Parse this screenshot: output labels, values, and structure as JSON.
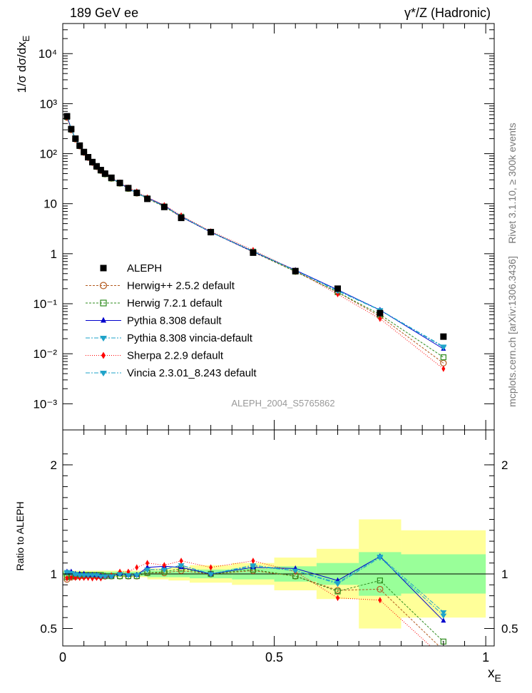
{
  "header": {
    "left_title": "189 GeV ee",
    "right_title": "γ*/Z (Hadronic)"
  },
  "side_labels": {
    "rivet": "Rivet 3.1.10, ≥ 300k events",
    "mcplots": "mcplots.cern.ch [arXiv:1306.3436]"
  },
  "watermark": "ALEPH_2004_S5765862",
  "chart_data": [
    {
      "type": "line",
      "title": "189 GeV ee — γ*/Z (Hadronic)",
      "ylabel": "1/σ dσ/dx_E",
      "yscale": "log",
      "xlim": [
        0,
        1.02
      ],
      "ylim": [
        0.0003,
        40000
      ],
      "y_ticks": [
        {
          "v": 0.001,
          "label": "10⁻³"
        },
        {
          "v": 0.01,
          "label": "10⁻²"
        },
        {
          "v": 0.1,
          "label": "10⁻¹"
        },
        {
          "v": 1,
          "label": "1"
        },
        {
          "v": 10,
          "label": "10"
        },
        {
          "v": 100,
          "label": "10²"
        },
        {
          "v": 1000,
          "label": "10³"
        },
        {
          "v": 10000,
          "label": "10⁴"
        }
      ],
      "legend_position": "middle-left",
      "x": [
        0.01,
        0.02,
        0.03,
        0.04,
        0.05,
        0.06,
        0.07,
        0.08,
        0.09,
        0.1,
        0.115,
        0.135,
        0.155,
        0.175,
        0.2,
        0.24,
        0.28,
        0.35,
        0.45,
        0.55,
        0.65,
        0.75,
        0.9
      ],
      "data": {
        "name": "ALEPH",
        "values": [
          560,
          310,
          200,
          145,
          108,
          85,
          68,
          56,
          47,
          40,
          33,
          26,
          20.5,
          16.5,
          12.5,
          8.6,
          5.2,
          2.7,
          1.05,
          0.45,
          0.2,
          0.065,
          0.022
        ]
      },
      "series": [
        {
          "name": "Herwig++ 2.5.2 default",
          "color": "#b35a1f",
          "marker": "circle-open",
          "dash": "3,2",
          "values": [
            530,
            300,
            195,
            142,
            106,
            84,
            67,
            55,
            46,
            39,
            32,
            25.5,
            20,
            16.2,
            12.6,
            8.7,
            5.4,
            2.7,
            1.08,
            0.44,
            0.17,
            0.056,
            0.0065
          ]
        },
        {
          "name": "Herwig 7.2.1 default",
          "color": "#2e8b1e",
          "marker": "square-open",
          "dash": "3,2",
          "values": [
            545,
            305,
            198,
            143,
            107,
            84,
            67,
            55,
            46,
            39,
            32,
            25.5,
            20,
            16.2,
            12.7,
            8.8,
            5.5,
            2.72,
            1.1,
            0.44,
            0.17,
            0.061,
            0.0085
          ]
        },
        {
          "name": "Pythia 8.308 default",
          "color": "#0000cc",
          "marker": "triangle-up",
          "dash": "",
          "values": [
            570,
            315,
            200,
            145,
            108,
            84,
            67,
            55,
            46,
            39,
            32.5,
            26,
            20.2,
            16.3,
            13.2,
            9.2,
            5.5,
            2.7,
            1.1,
            0.47,
            0.19,
            0.075,
            0.0125
          ]
        },
        {
          "name": "Pythia 8.308 vincia-default",
          "color": "#1fa3c9",
          "marker": "triangle-down",
          "dash": "6,2,2,2",
          "values": [
            565,
            312,
            198,
            144,
            107,
            84,
            67,
            55,
            46,
            39,
            32.5,
            26,
            20.2,
            16.3,
            13,
            8.9,
            5.6,
            2.7,
            1.12,
            0.46,
            0.185,
            0.075,
            0.014
          ]
        },
        {
          "name": "Sherpa 2.2.9 default",
          "color": "#ff0000",
          "marker": "diamond",
          "dash": "1,2",
          "values": [
            535,
            300,
            193,
            140,
            104,
            82,
            65,
            54,
            45,
            39,
            32.5,
            26.5,
            21,
            17.5,
            13.3,
            9.3,
            5.8,
            2.8,
            1.18,
            0.46,
            0.155,
            0.05,
            0.005
          ]
        },
        {
          "name": "Vincia 2.3.01_8.243 default",
          "color": "#1fa3c9",
          "marker": "triangle-down",
          "dash": "6,2,2,2",
          "values": [
            570,
            314,
            199,
            144,
            107,
            84,
            67,
            55,
            46,
            39,
            32.5,
            26,
            20.2,
            16.3,
            13,
            8.9,
            5.6,
            2.7,
            1.13,
            0.46,
            0.18,
            0.074,
            0.0135
          ]
        }
      ]
    },
    {
      "type": "line",
      "title": "Ratio to ALEPH",
      "ylabel": "Ratio to ALEPH",
      "xlabel": "x_E",
      "xlim": [
        0,
        1.02
      ],
      "ylim": [
        0.34,
        2.32
      ],
      "x_ticks": [
        {
          "v": 0,
          "label": "0"
        },
        {
          "v": 0.5,
          "label": "0.5"
        },
        {
          "v": 1,
          "label": "1"
        }
      ],
      "y_ticks": [
        {
          "v": 0.5,
          "label": "0.5"
        },
        {
          "v": 1,
          "label": "1"
        },
        {
          "v": 2,
          "label": "2"
        }
      ],
      "x": [
        0.01,
        0.02,
        0.03,
        0.04,
        0.05,
        0.06,
        0.07,
        0.08,
        0.09,
        0.1,
        0.115,
        0.135,
        0.155,
        0.175,
        0.2,
        0.24,
        0.28,
        0.35,
        0.45,
        0.55,
        0.65,
        0.75,
        0.9
      ],
      "bands": [
        {
          "x0": 0.0,
          "x1": 0.2,
          "stat": 0.02,
          "total": 0.03
        },
        {
          "x0": 0.2,
          "x1": 0.25,
          "stat": 0.03,
          "total": 0.05
        },
        {
          "x0": 0.25,
          "x1": 0.3,
          "stat": 0.03,
          "total": 0.06
        },
        {
          "x0": 0.3,
          "x1": 0.4,
          "stat": 0.04,
          "total": 0.08
        },
        {
          "x0": 0.4,
          "x1": 0.5,
          "stat": 0.05,
          "total": 0.1
        },
        {
          "x0": 0.5,
          "x1": 0.6,
          "stat": 0.07,
          "total": 0.15
        },
        {
          "x0": 0.6,
          "x1": 0.7,
          "stat": 0.1,
          "total": 0.23
        },
        {
          "x0": 0.7,
          "x1": 0.8,
          "stat": 0.2,
          "total": 0.5
        },
        {
          "x0": 0.8,
          "x1": 1.0,
          "stat": 0.18,
          "total": 0.4
        }
      ],
      "series": [
        {
          "name": "Herwig++ 2.5.2 default",
          "values": [
            0.95,
            0.97,
            0.975,
            0.98,
            0.98,
            0.985,
            0.985,
            0.98,
            0.98,
            0.98,
            0.98,
            0.98,
            0.98,
            0.98,
            1.01,
            1.01,
            1.03,
            1.0,
            1.03,
            0.98,
            0.85,
            0.86,
            0.3
          ]
        },
        {
          "name": "Herwig 7.2.1 default",
          "values": [
            0.97,
            0.98,
            0.99,
            0.99,
            0.99,
            0.99,
            0.99,
            0.99,
            0.99,
            0.98,
            0.98,
            0.98,
            0.98,
            0.98,
            1.01,
            1.02,
            1.05,
            1.0,
            1.04,
            0.98,
            0.84,
            0.94,
            0.38
          ]
        },
        {
          "name": "Pythia 8.308 default",
          "values": [
            1.02,
            1.02,
            1.0,
            1.0,
            1.0,
            0.99,
            0.99,
            0.99,
            0.98,
            0.98,
            0.98,
            1.0,
            0.99,
            0.99,
            1.06,
            1.07,
            1.06,
            1.0,
            1.06,
            1.05,
            0.94,
            1.16,
            0.57
          ]
        },
        {
          "name": "Pythia 8.308 vincia-default",
          "values": [
            1.01,
            1.01,
            0.99,
            0.99,
            0.99,
            0.99,
            0.99,
            0.99,
            0.98,
            0.98,
            0.98,
            1.0,
            0.99,
            0.99,
            1.04,
            1.04,
            1.08,
            1.0,
            1.07,
            1.03,
            0.92,
            1.16,
            0.65
          ]
        },
        {
          "name": "Sherpa 2.2.9 default",
          "values": [
            0.96,
            0.97,
            0.965,
            0.965,
            0.965,
            0.965,
            0.96,
            0.965,
            0.96,
            0.975,
            0.985,
            1.02,
            1.02,
            1.06,
            1.1,
            1.08,
            1.12,
            1.06,
            1.12,
            1.02,
            0.78,
            0.76,
            0.23
          ]
        },
        {
          "name": "Vincia 2.3.01_8.243 default",
          "values": [
            1.02,
            1.01,
            1.0,
            0.99,
            0.99,
            0.99,
            0.99,
            0.99,
            0.98,
            0.98,
            0.98,
            1.0,
            0.99,
            0.99,
            1.04,
            1.04,
            1.08,
            1.0,
            1.08,
            1.03,
            0.91,
            1.15,
            0.62
          ]
        }
      ]
    }
  ]
}
